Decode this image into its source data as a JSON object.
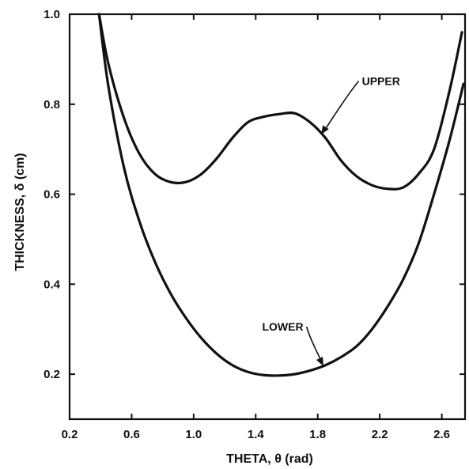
{
  "chart_data": {
    "type": "line",
    "title": "",
    "xlabel": "THETA, θ (rad)",
    "ylabel": "THICKNESS, δ (cm)",
    "xlim": [
      0.2,
      2.75
    ],
    "ylim": [
      0.1,
      1.0
    ],
    "x_ticks": [
      0.2,
      0.6,
      1.0,
      1.4,
      1.8,
      2.2,
      2.6
    ],
    "x_tick_labels": [
      "0.2",
      "0.6",
      "1.0",
      "1.4",
      "1.8",
      "2.2",
      "2.6"
    ],
    "y_ticks": [
      0.2,
      0.4,
      0.6,
      0.8,
      1.0
    ],
    "y_tick_labels": [
      "0.2",
      "0.4",
      "0.6",
      "0.8",
      "1.0"
    ],
    "grid": false,
    "legend": "none",
    "series": [
      {
        "name": "UPPER",
        "x": [
          0.39,
          0.45,
          0.55,
          0.65,
          0.75,
          0.85,
          0.95,
          1.05,
          1.15,
          1.25,
          1.35,
          1.45,
          1.55,
          1.65,
          1.75,
          1.85,
          1.95,
          2.05,
          2.15,
          2.25,
          2.35,
          2.45,
          2.55,
          2.65,
          2.73
        ],
        "values": [
          1.0,
          0.89,
          0.77,
          0.69,
          0.645,
          0.627,
          0.627,
          0.645,
          0.68,
          0.725,
          0.76,
          0.772,
          0.778,
          0.78,
          0.76,
          0.725,
          0.675,
          0.64,
          0.62,
          0.612,
          0.615,
          0.645,
          0.7,
          0.83,
          0.96
        ]
      },
      {
        "name": "LOWER",
        "x": [
          0.39,
          0.45,
          0.55,
          0.65,
          0.75,
          0.85,
          0.95,
          1.05,
          1.15,
          1.25,
          1.35,
          1.45,
          1.55,
          1.65,
          1.75,
          1.85,
          1.95,
          2.05,
          2.15,
          2.25,
          2.35,
          2.45,
          2.55,
          2.65,
          2.74
        ],
        "values": [
          1.0,
          0.84,
          0.66,
          0.54,
          0.45,
          0.38,
          0.325,
          0.28,
          0.245,
          0.22,
          0.205,
          0.198,
          0.197,
          0.2,
          0.208,
          0.22,
          0.238,
          0.262,
          0.3,
          0.35,
          0.41,
          0.49,
          0.6,
          0.72,
          0.845
        ]
      }
    ],
    "annotations": [
      {
        "text": "UPPER",
        "target_series": "UPPER",
        "target_x": 1.83
      },
      {
        "text": "LOWER",
        "target_series": "LOWER",
        "target_x": 1.83
      }
    ]
  }
}
